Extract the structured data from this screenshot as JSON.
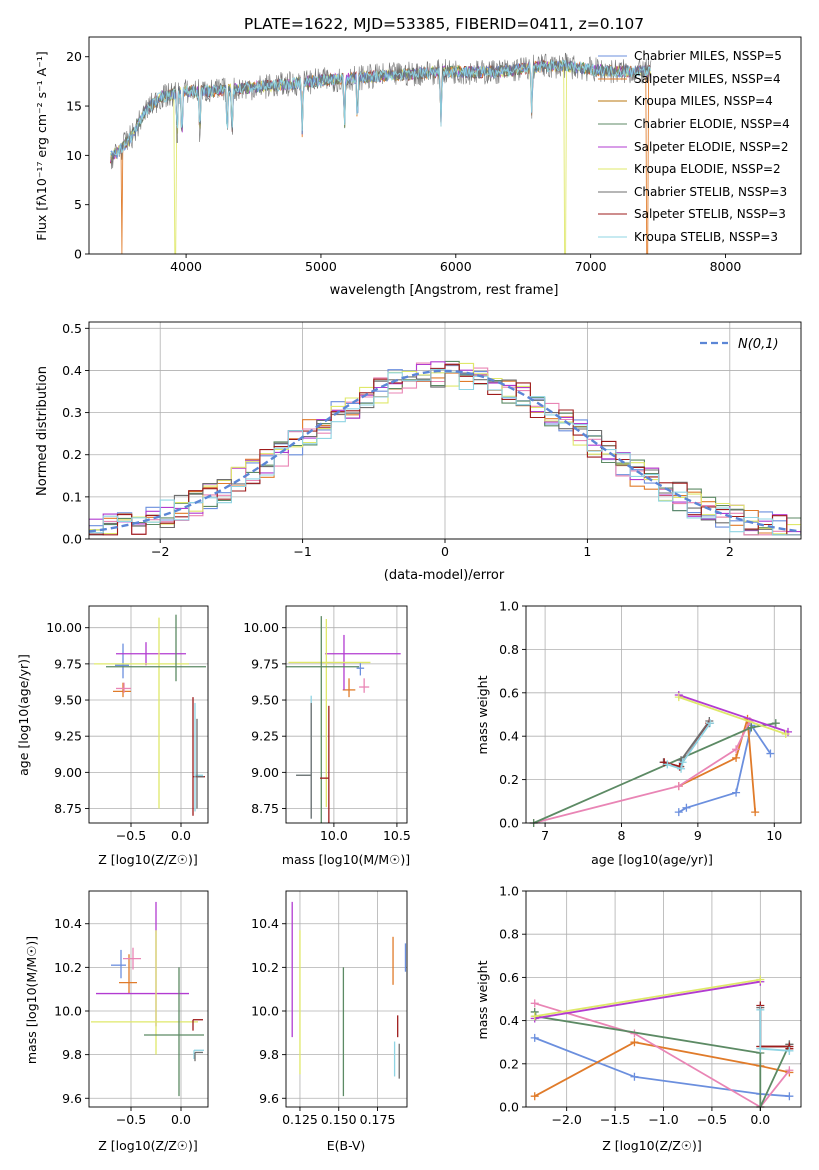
{
  "colors": {
    "blue": "#6b8fde",
    "orange": "#e07b2a",
    "green": "#5c8a64",
    "pink": "#e985b5",
    "purple": "#b23bd1",
    "yellow": "#dfe86a",
    "gray": "#6e6e6e",
    "darkred": "#9e1b1b",
    "cyan": "#8fd4e3",
    "normal": "#5b86d6"
  },
  "spectrum": {
    "title": "PLATE=1622, MJD=53385, FIBERID=0411, z=0.107",
    "xlabel": "wavelength [Angstrom, rest frame]",
    "ylabel": "Flux [fλ10⁻¹⁷ erg cm⁻² s⁻¹ A⁻¹]",
    "legend": [
      {
        "label": "Chabrier MILES, NSSP=5",
        "color": "blue"
      },
      {
        "label": "Salpeter MILES, NSSP=4",
        "color": "orange"
      },
      {
        "label": "Kroupa MILES, NSSP=4",
        "color": "orange"
      },
      {
        "label": "Chabrier ELODIE, NSSP=4",
        "color": "green"
      },
      {
        "label": "Salpeter ELODIE, NSSP=2",
        "color": "purple"
      },
      {
        "label": "Kroupa ELODIE, NSSP=2",
        "color": "yellow"
      },
      {
        "label": "Chabrier STELIB, NSSP=3",
        "color": "gray"
      },
      {
        "label": "Salpeter STELIB, NSSP=3",
        "color": "darkred"
      },
      {
        "label": "Kroupa STELIB, NSSP=3",
        "color": "cyan"
      }
    ]
  },
  "residuals": {
    "xlabel": "(data-model)/error",
    "ylabel": "Normed distribution",
    "legend": "N(0,1)"
  },
  "panels": {
    "age_Z": {
      "xlabel": "Z [log10(Z/Z☉)]",
      "ylabel": "age  [log10(age/yr)]"
    },
    "age_mass": {
      "xlabel": "mass [log10(M/M☉)]"
    },
    "weight_age": {
      "xlabel": "age  [log10(age/yr)]",
      "ylabel": "mass weight"
    },
    "mass_Z": {
      "xlabel": "Z [log10(Z/Z☉)]",
      "ylabel": "mass [log10(M/M☉)]"
    },
    "mass_ebv": {
      "xlabel": "E(B-V)"
    },
    "weight_Z": {
      "xlabel": "Z [log10(Z/Z☉)]",
      "ylabel": "mass weight"
    }
  },
  "chart_data": [
    {
      "type": "line",
      "name": "spectrum",
      "xlim": [
        3280,
        8560
      ],
      "ylim": [
        0,
        22
      ],
      "xticks": [
        4000,
        5000,
        6000,
        7000,
        8000
      ],
      "yticks": [
        0,
        5,
        10,
        15,
        20
      ],
      "grid": false,
      "legend_placement": "right",
      "x_range": [
        3440,
        7450
      ],
      "series_continuum": [
        [
          3440,
          9.8
        ],
        [
          3500,
          10.4
        ],
        [
          3600,
          12.0
        ],
        [
          3700,
          14.5
        ],
        [
          3800,
          15.8
        ],
        [
          3900,
          16.2
        ],
        [
          4000,
          16.5
        ],
        [
          4200,
          16.5
        ],
        [
          4400,
          16.8
        ],
        [
          4600,
          17.0
        ],
        [
          4800,
          17.3
        ],
        [
          5000,
          17.6
        ],
        [
          5200,
          17.8
        ],
        [
          5400,
          18.0
        ],
        [
          5600,
          18.2
        ],
        [
          5800,
          18.4
        ],
        [
          6000,
          18.5
        ],
        [
          6200,
          18.4
        ],
        [
          6400,
          18.6
        ],
        [
          6600,
          19.0
        ],
        [
          6800,
          19.1
        ],
        [
          7000,
          18.7
        ],
        [
          7200,
          18.5
        ],
        [
          7450,
          18.5
        ]
      ],
      "absorption_lines": [
        3934,
        3969,
        4102,
        4305,
        4341,
        4861,
        5175,
        5270,
        5890,
        6563
      ],
      "drops": [
        {
          "x": 3525,
          "color": "orange"
        },
        {
          "x": 3920,
          "color": "yellow"
        },
        {
          "x": 6810,
          "color": "yellow"
        },
        {
          "x": 7420,
          "color": "orange"
        }
      ]
    },
    {
      "type": "step",
      "name": "residual-histograms",
      "xlim": [
        -2.5,
        2.5
      ],
      "ylim": [
        0,
        0.515
      ],
      "xticks": [
        -2,
        -1,
        0,
        1,
        2
      ],
      "yticks": [
        0.0,
        0.1,
        0.2,
        0.3,
        0.4,
        0.5
      ],
      "grid": true,
      "legend_placement": "top-right",
      "bin_width": 0.1,
      "series_colors": [
        "blue",
        "orange",
        "green",
        "pink",
        "purple",
        "yellow",
        "gray",
        "darkred",
        "cyan"
      ],
      "normal_curve": {
        "mean": 0,
        "sd": 1,
        "color": "normal"
      }
    },
    {
      "type": "errorbar",
      "name": "age-vs-Z",
      "xlim": [
        -0.92,
        0.27
      ],
      "ylim": [
        8.65,
        10.15
      ],
      "xticks": [
        -0.5,
        0.0
      ],
      "yticks": [
        8.75,
        9.0,
        9.25,
        9.5,
        9.75,
        10.0
      ],
      "grid": true,
      "points": [
        {
          "x": -0.58,
          "xe": [
            0.08,
            0.06
          ],
          "y": 9.74,
          "ye": [
            0.09,
            0.15
          ],
          "color": "blue"
        },
        {
          "x": -0.58,
          "xe": [
            0.1,
            0.08
          ],
          "y": 9.56,
          "ye": [
            0.04,
            0.06
          ],
          "color": "orange"
        },
        {
          "x": -0.57,
          "xe": [
            0.08,
            0.07
          ],
          "y": 9.58,
          "ye": [
            0.03,
            0.04
          ],
          "color": "pink"
        },
        {
          "x": -0.35,
          "xe": [
            0.3,
            0.4
          ],
          "y": 9.82,
          "ye": [
            0.08,
            0.08
          ],
          "color": "purple"
        },
        {
          "x": -0.22,
          "xe": [
            0.65,
            0.3
          ],
          "y": 9.75,
          "ye": [
            1.0,
            0.32
          ],
          "color": "yellow"
        },
        {
          "x": -0.05,
          "xe": [
            0.7,
            0.3
          ],
          "y": 9.73,
          "ye": [
            0.1,
            0.36
          ],
          "color": "green"
        },
        {
          "x": 0.12,
          "xe": [
            0.0,
            0.12
          ],
          "y": 8.97,
          "ye": [
            0.27,
            0.55
          ],
          "color": "darkred"
        },
        {
          "x": 0.14,
          "xe": [
            0.0,
            0.08
          ],
          "y": 8.98,
          "ye": [
            0.25,
            0.5
          ],
          "color": "cyan"
        },
        {
          "x": 0.16,
          "xe": [
            0.0,
            0.07
          ],
          "y": 8.97,
          "ye": [
            0.22,
            0.4
          ],
          "color": "gray"
        }
      ]
    },
    {
      "type": "errorbar",
      "name": "age-vs-mass",
      "xlim": [
        9.62,
        10.58
      ],
      "ylim": [
        8.65,
        10.15
      ],
      "xticks": [
        10.0,
        10.5
      ],
      "yticks": [
        8.75,
        9.0,
        9.25,
        9.5,
        9.75,
        10.0
      ],
      "grid": true,
      "points": [
        {
          "x": 10.21,
          "xe": [
            0.03,
            0.03
          ],
          "y": 9.72,
          "ye": [
            0.05,
            0.04
          ],
          "color": "blue"
        },
        {
          "x": 10.12,
          "xe": [
            0.05,
            0.05
          ],
          "y": 9.57,
          "ye": [
            0.05,
            0.08
          ],
          "color": "orange"
        },
        {
          "x": 10.24,
          "xe": [
            0.04,
            0.04
          ],
          "y": 9.59,
          "ye": [
            0.04,
            0.06
          ],
          "color": "pink"
        },
        {
          "x": 10.08,
          "xe": [
            0.15,
            0.45
          ],
          "y": 9.82,
          "ye": [
            0.25,
            0.13
          ],
          "color": "purple"
        },
        {
          "x": 9.94,
          "xe": [
            0.3,
            0.35
          ],
          "y": 9.76,
          "ye": [
            1.0,
            0.3
          ],
          "color": "yellow"
        },
        {
          "x": 9.9,
          "xe": [
            0.3,
            0.3
          ],
          "y": 9.73,
          "ye": [
            1.1,
            0.35
          ],
          "color": "green"
        },
        {
          "x": 9.96,
          "xe": [
            0.07,
            0.0
          ],
          "y": 8.96,
          "ye": [
            0.35,
            0.5
          ],
          "color": "darkred"
        },
        {
          "x": 9.82,
          "xe": [
            0.12,
            0.0
          ],
          "y": 8.98,
          "ye": [
            0.3,
            0.55
          ],
          "color": "cyan"
        },
        {
          "x": 9.82,
          "xe": [
            0.12,
            0.0
          ],
          "y": 8.98,
          "ye": [
            0.3,
            0.5
          ],
          "color": "gray"
        }
      ]
    },
    {
      "type": "line",
      "name": "mass-weight-vs-age",
      "xlim": [
        6.75,
        10.35
      ],
      "ylim": [
        0,
        1
      ],
      "xticks": [
        7,
        8,
        9,
        10
      ],
      "yticks": [
        0.0,
        0.2,
        0.4,
        0.6,
        0.8,
        1.0
      ],
      "grid": true,
      "series": [
        {
          "color": "blue",
          "x": [
            8.75,
            8.85,
            9.5,
            9.7,
            9.95
          ],
          "y": [
            0.05,
            0.07,
            0.14,
            0.45,
            0.32
          ]
        },
        {
          "color": "orange",
          "x": [
            8.75,
            9.5,
            9.65,
            9.75
          ],
          "y": [
            0.17,
            0.3,
            0.48,
            0.05
          ]
        },
        {
          "color": "pink",
          "x": [
            6.85,
            8.75,
            9.5,
            9.68
          ],
          "y": [
            0.0,
            0.17,
            0.34,
            0.47
          ]
        },
        {
          "color": "green",
          "x": [
            6.85,
            9.7,
            10.02
          ],
          "y": [
            0.0,
            0.44,
            0.46
          ]
        },
        {
          "color": "purple",
          "x": [
            8.75,
            10.18
          ],
          "y": [
            0.59,
            0.42
          ]
        },
        {
          "color": "yellow",
          "x": [
            8.75,
            10.15
          ],
          "y": [
            0.58,
            0.41
          ]
        },
        {
          "color": "gray",
          "x": [
            8.55,
            8.77,
            8.78,
            9.15
          ],
          "y": [
            0.28,
            0.26,
            0.29,
            0.47
          ]
        },
        {
          "color": "darkred",
          "x": [
            8.56,
            8.76,
            9.15
          ],
          "y": [
            0.28,
            0.26,
            0.46
          ]
        },
        {
          "color": "cyan",
          "x": [
            8.6,
            8.78,
            8.8,
            9.16
          ],
          "y": [
            0.27,
            0.25,
            0.28,
            0.46
          ]
        }
      ]
    },
    {
      "type": "errorbar",
      "name": "mass-vs-Z",
      "xlim": [
        -0.92,
        0.27
      ],
      "ylim": [
        9.56,
        10.55
      ],
      "xticks": [
        -0.5,
        0.0
      ],
      "yticks": [
        9.6,
        9.8,
        10.0,
        10.2,
        10.4
      ],
      "grid": true,
      "points": [
        {
          "x": -0.6,
          "xe": [
            0.1,
            0.05
          ],
          "y": 10.21,
          "ye": [
            0.06,
            0.07
          ],
          "color": "blue"
        },
        {
          "x": -0.52,
          "xe": [
            0.1,
            0.08
          ],
          "y": 10.13,
          "ye": [
            0.05,
            0.13
          ],
          "color": "orange"
        },
        {
          "x": -0.48,
          "xe": [
            0.1,
            0.08
          ],
          "y": 10.24,
          "ye": [
            0.05,
            0.05
          ],
          "color": "pink"
        },
        {
          "x": -0.25,
          "xe": [
            0.6,
            0.33
          ],
          "y": 10.08,
          "ye": [
            0.15,
            0.42
          ],
          "color": "purple"
        },
        {
          "x": -0.25,
          "xe": [
            0.65,
            0.42
          ],
          "y": 9.95,
          "ye": [
            0.15,
            0.42
          ],
          "color": "yellow"
        },
        {
          "x": -0.02,
          "xe": [
            0.35,
            0.25
          ],
          "y": 9.89,
          "ye": [
            0.28,
            0.31
          ],
          "color": "green"
        },
        {
          "x": 0.12,
          "xe": [
            0.0,
            0.1
          ],
          "y": 9.96,
          "ye": [
            0.05,
            0.0
          ],
          "color": "darkred"
        },
        {
          "x": 0.13,
          "xe": [
            0.0,
            0.1
          ],
          "y": 9.82,
          "ye": [
            0.04,
            0.0
          ],
          "color": "cyan"
        },
        {
          "x": 0.14,
          "xe": [
            0.0,
            0.08
          ],
          "y": 9.81,
          "ye": [
            0.04,
            0.0
          ],
          "color": "gray"
        }
      ]
    },
    {
      "type": "errorbar",
      "name": "mass-vs-ebv",
      "xlim": [
        0.116,
        0.194
      ],
      "ylim": [
        9.56,
        10.55
      ],
      "xticks": [
        0.125,
        0.15,
        0.175
      ],
      "yticks": [
        9.6,
        9.8,
        10.0,
        10.2,
        10.4
      ],
      "grid": true,
      "points": [
        {
          "x": 0.12,
          "y": 10.15,
          "ye": [
            0.27,
            0.35
          ],
          "color": "purple"
        },
        {
          "x": 0.125,
          "y": 10.0,
          "ye": [
            0.29,
            0.37
          ],
          "color": "yellow"
        },
        {
          "x": 0.153,
          "y": 9.9,
          "ye": [
            0.29,
            0.3
          ],
          "color": "green"
        },
        {
          "x": 0.185,
          "y": 10.23,
          "ye": [
            0.11,
            0.11
          ],
          "color": "orange"
        },
        {
          "x": 0.193,
          "y": 10.25,
          "ye": [
            0.07,
            0.06
          ],
          "color": "blue"
        },
        {
          "x": 0.188,
          "y": 9.93,
          "ye": [
            0.05,
            0.05
          ],
          "color": "darkred"
        },
        {
          "x": 0.186,
          "y": 9.78,
          "ye": [
            0.08,
            0.08
          ],
          "color": "cyan"
        },
        {
          "x": 0.189,
          "y": 9.77,
          "ye": [
            0.08,
            0.08
          ],
          "color": "gray"
        }
      ]
    },
    {
      "type": "line",
      "name": "mass-weight-vs-Z",
      "xlim": [
        -2.42,
        0.42
      ],
      "ylim": [
        0,
        1
      ],
      "xticks": [
        -2.0,
        -1.5,
        -1.0,
        -0.5,
        0.0
      ],
      "yticks": [
        0.0,
        0.2,
        0.4,
        0.6,
        0.8,
        1.0
      ],
      "grid": true,
      "series": [
        {
          "color": "blue",
          "x": [
            -2.33,
            -1.3,
            0.0,
            0.3
          ],
          "y": [
            0.32,
            0.14,
            0.06,
            0.05
          ]
        },
        {
          "color": "orange",
          "x": [
            -2.33,
            -1.3,
            0.0,
            0.3
          ],
          "y": [
            0.05,
            0.3,
            0.19,
            0.16
          ]
        },
        {
          "color": "pink",
          "x": [
            -2.33,
            -1.3,
            0.0,
            0.3
          ],
          "y": [
            0.48,
            0.34,
            0.0,
            0.17
          ]
        },
        {
          "color": "green",
          "x": [
            -2.33,
            -2.32,
            0.0,
            0.0,
            0.3
          ],
          "y": [
            0.44,
            0.42,
            0.25,
            0.0,
            0.29
          ]
        },
        {
          "color": "purple",
          "x": [
            -2.33,
            0.0
          ],
          "y": [
            0.41,
            0.58
          ]
        },
        {
          "color": "yellow",
          "x": [
            -2.33,
            0.0
          ],
          "y": [
            0.42,
            0.59
          ]
        },
        {
          "color": "gray",
          "x": [
            0.0,
            0.0,
            0.3,
            0.3
          ],
          "y": [
            0.46,
            0.28,
            0.28,
            0.29
          ]
        },
        {
          "color": "darkred",
          "x": [
            0.0,
            0.0,
            0.3,
            0.3
          ],
          "y": [
            0.47,
            0.28,
            0.28,
            0.27
          ]
        },
        {
          "color": "cyan",
          "x": [
            0.0,
            0.0,
            0.3,
            0.3
          ],
          "y": [
            0.45,
            0.27,
            0.26,
            0.26
          ]
        }
      ]
    }
  ]
}
